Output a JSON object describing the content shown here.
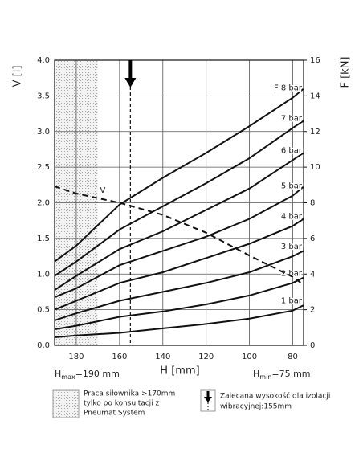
{
  "chart_data": {
    "type": "line",
    "x_label": "H [mm]",
    "y_label": "V [l]",
    "y2_label": "F [kN]",
    "x": [
      190,
      180,
      160,
      140,
      120,
      100,
      80,
      75
    ],
    "xlim": [
      190,
      75
    ],
    "xticks": [
      180,
      160,
      140,
      120,
      100,
      80
    ],
    "ylim": [
      0,
      4
    ],
    "yticks": [
      {
        "value": 0,
        "label": "0.0"
      },
      0.5,
      {
        "value": 1,
        "label": "1.0"
      },
      1.5,
      {
        "value": 2,
        "label": "2.0"
      },
      2.5,
      {
        "value": 3,
        "label": "3.0"
      },
      3.5,
      {
        "value": 4,
        "label": "4.0"
      }
    ],
    "y2lim": [
      0,
      16
    ],
    "y2ticks": [
      0,
      2,
      4,
      6,
      8,
      10,
      12,
      14,
      16
    ],
    "grid": true,
    "series": [
      {
        "name": "F 8 bar",
        "color": "#111111",
        "axis": "y2",
        "values": [
          4.7,
          5.6,
          7.9,
          9.4,
          10.8,
          12.3,
          13.9,
          14.4
        ]
      },
      {
        "name": "7 bar",
        "color": "#111111",
        "axis": "y2",
        "values": [
          3.9,
          4.7,
          6.5,
          7.8,
          9.1,
          10.5,
          12.2,
          12.6
        ]
      },
      {
        "name": "6 bar",
        "color": "#111111",
        "axis": "y2",
        "values": [
          3.1,
          3.9,
          5.4,
          6.4,
          7.6,
          8.8,
          10.4,
          10.8
        ]
      },
      {
        "name": "5 bar",
        "color": "#111111",
        "axis": "y2",
        "values": [
          2.7,
          3.2,
          4.5,
          5.3,
          6.1,
          7.1,
          8.4,
          8.9
        ]
      },
      {
        "name": "4 bar",
        "color": "#111111",
        "axis": "y2",
        "values": [
          2.0,
          2.5,
          3.5,
          4.1,
          4.9,
          5.7,
          6.7,
          7.1
        ]
      },
      {
        "name": "3 bar",
        "color": "#111111",
        "axis": "y2",
        "values": [
          1.4,
          1.8,
          2.5,
          3.0,
          3.5,
          4.1,
          5.0,
          5.3
        ]
      },
      {
        "name": "2 bar",
        "color": "#111111",
        "axis": "y2",
        "values": [
          0.9,
          1.1,
          1.6,
          1.9,
          2.3,
          2.8,
          3.5,
          3.8
        ]
      },
      {
        "name": "1 bar",
        "color": "#111111",
        "axis": "y2",
        "values": [
          0.45,
          0.55,
          0.7,
          0.95,
          1.2,
          1.5,
          1.95,
          2.25
        ]
      },
      {
        "name": "V",
        "color": "#111111",
        "dashed": true,
        "values": [
          2.23,
          2.13,
          2.0,
          1.83,
          1.58,
          1.26,
          0.96,
          0.85
        ]
      }
    ],
    "hatch_range": [
      190,
      170
    ],
    "recommended_h": 155,
    "h_max_label": {
      "symbol": "H",
      "sub": "max",
      "text": "=190 mm"
    },
    "h_min_label": {
      "symbol": "H",
      "sub": "min",
      "text": "=75 mm"
    },
    "legend_items": [
      {
        "lines": [
          "Praca siłownika >170mm",
          "tylko po konsultacji z",
          "Pneumat System"
        ]
      },
      {
        "lines": [
          "Zalecana wysokość dla izolacji",
          "wibracyjnej:155mm"
        ]
      }
    ]
  }
}
